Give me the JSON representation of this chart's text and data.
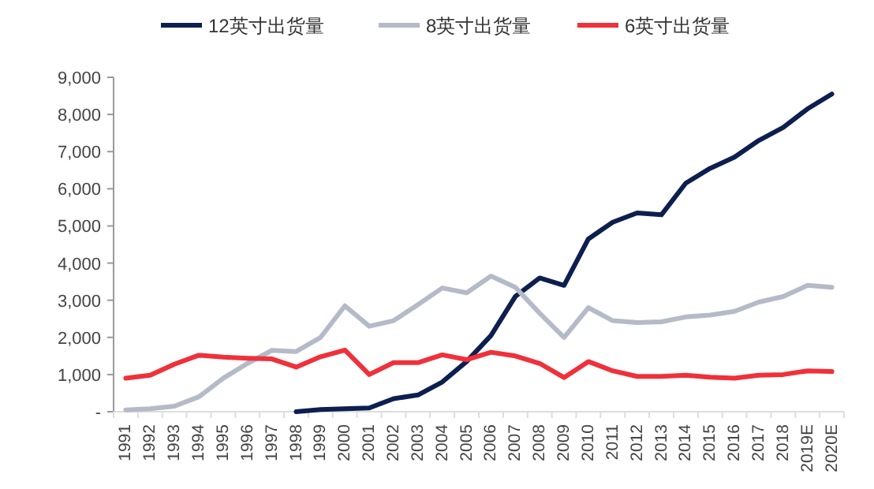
{
  "chart_data": {
    "type": "line",
    "categories": [
      "1991",
      "1992",
      "1993",
      "1994",
      "1995",
      "1996",
      "1997",
      "1998",
      "1999",
      "2000",
      "2001",
      "2002",
      "2003",
      "2004",
      "2005",
      "2006",
      "2007",
      "2008",
      "2009",
      "2010",
      "2011",
      "2012",
      "2013",
      "2014",
      "2015",
      "2016",
      "2017",
      "2018",
      "2019E",
      "2020E"
    ],
    "series": [
      {
        "name": "12英寸出货量",
        "color": "#0d1f4f",
        "values": [
          null,
          null,
          null,
          null,
          null,
          null,
          null,
          0,
          60,
          80,
          100,
          350,
          450,
          800,
          1350,
          2050,
          3100,
          3600,
          3400,
          4650,
          5100,
          5350,
          5300,
          6150,
          6550,
          6850,
          7300,
          7650,
          8150,
          8550
        ]
      },
      {
        "name": "8英寸出货量",
        "color": "#b4bac8",
        "values": [
          50,
          80,
          150,
          400,
          900,
          1300,
          1650,
          1620,
          2000,
          2850,
          2300,
          2450,
          2880,
          3330,
          3200,
          3650,
          3350,
          2650,
          2000,
          2800,
          2450,
          2400,
          2420,
          2550,
          2600,
          2700,
          2950,
          3100,
          3400,
          3350
        ]
      },
      {
        "name": "6英寸出货量",
        "color": "#f0303a",
        "values": [
          900,
          980,
          1280,
          1520,
          1470,
          1440,
          1420,
          1200,
          1480,
          1660,
          1000,
          1320,
          1320,
          1530,
          1400,
          1600,
          1500,
          1300,
          920,
          1350,
          1100,
          950,
          950,
          980,
          930,
          900,
          980,
          1000,
          1100,
          1080
        ]
      }
    ],
    "ylim": [
      0,
      9000
    ],
    "yticks": [
      {
        "value": 0,
        "label": "-"
      },
      {
        "value": 1000,
        "label": "1,000"
      },
      {
        "value": 2000,
        "label": "2,000"
      },
      {
        "value": 3000,
        "label": "3,000"
      },
      {
        "value": 4000,
        "label": "4,000"
      },
      {
        "value": 5000,
        "label": "5,000"
      },
      {
        "value": 6000,
        "label": "6,000"
      },
      {
        "value": 7000,
        "label": "7,000"
      },
      {
        "value": 8000,
        "label": "8,000"
      },
      {
        "value": 9000,
        "label": "9,000"
      }
    ],
    "legend": "top",
    "grid": false,
    "marker": "none",
    "line_style": "solid"
  }
}
